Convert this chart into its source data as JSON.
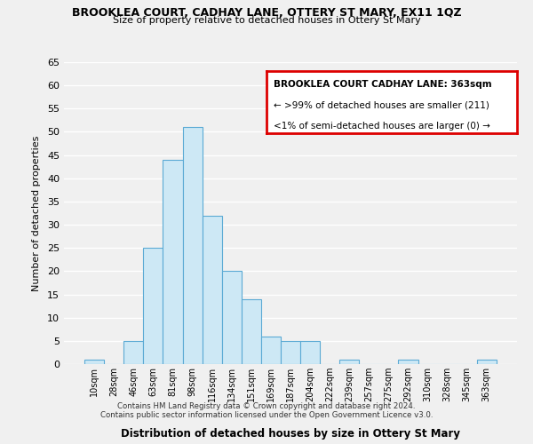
{
  "title": "BROOKLEA COURT, CADHAY LANE, OTTERY ST MARY, EX11 1QZ",
  "subtitle": "Size of property relative to detached houses in Ottery St Mary",
  "xlabel": "Distribution of detached houses by size in Ottery St Mary",
  "ylabel": "Number of detached properties",
  "bins": [
    "10sqm",
    "28sqm",
    "46sqm",
    "63sqm",
    "81sqm",
    "98sqm",
    "116sqm",
    "134sqm",
    "151sqm",
    "169sqm",
    "187sqm",
    "204sqm",
    "222sqm",
    "239sqm",
    "257sqm",
    "275sqm",
    "292sqm",
    "310sqm",
    "328sqm",
    "345sqm",
    "363sqm"
  ],
  "values": [
    1,
    0,
    5,
    25,
    44,
    51,
    32,
    20,
    14,
    6,
    5,
    5,
    0,
    1,
    0,
    0,
    1,
    0,
    0,
    0,
    1
  ],
  "bar_color": "#cde8f5",
  "bar_edge_color": "#5baad4",
  "ylim": [
    0,
    65
  ],
  "yticks": [
    0,
    5,
    10,
    15,
    20,
    25,
    30,
    35,
    40,
    45,
    50,
    55,
    60,
    65
  ],
  "legend_title": "BROOKLEA COURT CADHAY LANE: 363sqm",
  "legend_line1": "← >99% of detached houses are smaller (211)",
  "legend_line2": "<1% of semi-detached houses are larger (0) →",
  "legend_box_color": "#dd0000",
  "footer_line1": "Contains HM Land Registry data © Crown copyright and database right 2024.",
  "footer_line2": "Contains public sector information licensed under the Open Government Licence v3.0.",
  "background_color": "#f0f0f0",
  "grid_color": "#ffffff"
}
